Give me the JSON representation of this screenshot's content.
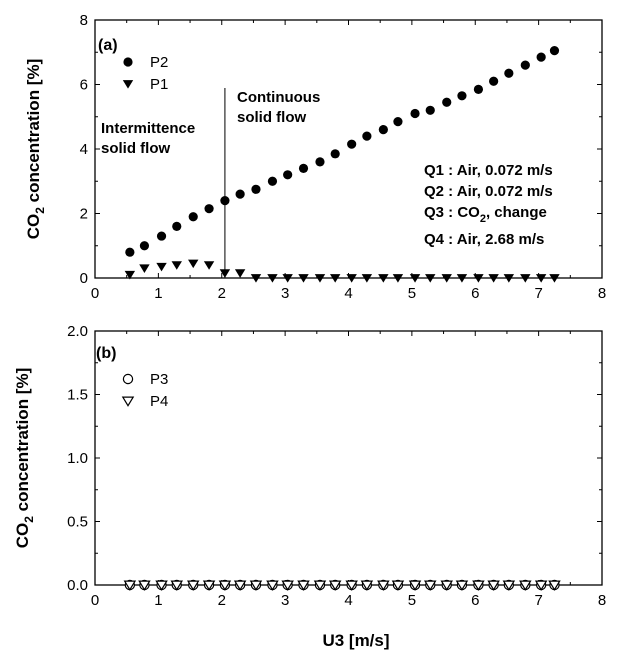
{
  "chart_data": [
    {
      "type": "scatter",
      "panel_label": "(a)",
      "ylabel_main": "CO",
      "ylabel_sub": "2",
      "ylabel_rest": " concentration [%]",
      "xlim": [
        0,
        8
      ],
      "ylim": [
        0,
        8
      ],
      "xticks": [
        "0",
        "1",
        "2",
        "3",
        "4",
        "5",
        "6",
        "7",
        "8"
      ],
      "yticks": [
        "0",
        "2",
        "4",
        "6",
        "8"
      ],
      "grid": false,
      "legend_position": "top-left",
      "series": [
        {
          "name": "P2",
          "marker": "filled-circle",
          "x": [
            0.55,
            0.78,
            1.05,
            1.29,
            1.55,
            1.8,
            2.05,
            2.29,
            2.54,
            2.8,
            3.04,
            3.29,
            3.55,
            3.79,
            4.05,
            4.29,
            4.55,
            4.78,
            5.05,
            5.29,
            5.55,
            5.79,
            6.05,
            6.29,
            6.53,
            6.79,
            7.04,
            7.25
          ],
          "y": [
            0.8,
            1.0,
            1.3,
            1.6,
            1.9,
            2.15,
            2.4,
            2.6,
            2.75,
            3.0,
            3.2,
            3.4,
            3.6,
            3.85,
            4.15,
            4.4,
            4.6,
            4.85,
            5.1,
            5.2,
            5.45,
            5.65,
            5.85,
            6.1,
            6.35,
            6.6,
            6.85,
            7.05
          ]
        },
        {
          "name": "P1",
          "marker": "filled-down-triangle",
          "x": [
            0.55,
            0.78,
            1.05,
            1.29,
            1.55,
            1.8,
            2.05,
            2.29,
            2.54,
            2.8,
            3.04,
            3.29,
            3.55,
            3.79,
            4.05,
            4.29,
            4.55,
            4.78,
            5.05,
            5.29,
            5.55,
            5.79,
            6.05,
            6.29,
            6.53,
            6.79,
            7.04,
            7.25
          ],
          "y": [
            0.1,
            0.3,
            0.35,
            0.4,
            0.45,
            0.4,
            0.15,
            0.15,
            0.0,
            0.0,
            0.0,
            0.0,
            0.0,
            0.0,
            0.0,
            0.0,
            0.0,
            0.0,
            0.0,
            0.0,
            0.0,
            0.0,
            0.0,
            0.0,
            0.0,
            0.0,
            0.0,
            0.0
          ]
        }
      ],
      "annotations": {
        "left_region": [
          "Intermittence",
          "solid flow"
        ],
        "right_region": [
          "Continuous",
          "solid flow"
        ],
        "divider_x": 2.05,
        "conditions": [
          {
            "main": "Q1 : Air, 0.072 m/s"
          },
          {
            "main": "Q2 : Air, 0.072 m/s"
          },
          {
            "main": "Q3 : CO",
            "sub": "2",
            "rest": ", change"
          },
          {
            "main": "Q4 : Air, 2.68 m/s"
          }
        ]
      }
    },
    {
      "type": "scatter",
      "panel_label": "(b)",
      "ylabel_main": "CO",
      "ylabel_sub": "2",
      "ylabel_rest": " concentration [%]",
      "xlabel": "U3 [m/s]",
      "xlim": [
        0,
        8
      ],
      "ylim": [
        0,
        2
      ],
      "xticks": [
        "0",
        "1",
        "2",
        "3",
        "4",
        "5",
        "6",
        "7",
        "8"
      ],
      "yticks": [
        "0.0",
        "0.5",
        "1.0",
        "1.5",
        "2.0"
      ],
      "grid": false,
      "legend_position": "top-left",
      "series": [
        {
          "name": "P3",
          "marker": "open-circle",
          "x": [
            0.55,
            0.78,
            1.05,
            1.29,
            1.55,
            1.8,
            2.05,
            2.29,
            2.54,
            2.8,
            3.04,
            3.29,
            3.55,
            3.79,
            4.05,
            4.29,
            4.55,
            4.78,
            5.05,
            5.29,
            5.55,
            5.79,
            6.05,
            6.29,
            6.53,
            6.79,
            7.04,
            7.25
          ],
          "y": [
            0,
            0,
            0,
            0,
            0,
            0,
            0,
            0,
            0,
            0,
            0,
            0,
            0,
            0,
            0,
            0,
            0,
            0,
            0,
            0,
            0,
            0,
            0,
            0,
            0,
            0,
            0,
            0
          ]
        },
        {
          "name": "P4",
          "marker": "open-down-triangle",
          "x": [
            0.55,
            0.78,
            1.05,
            1.29,
            1.55,
            1.8,
            2.05,
            2.29,
            2.54,
            2.8,
            3.04,
            3.29,
            3.55,
            3.79,
            4.05,
            4.29,
            4.55,
            4.78,
            5.05,
            5.29,
            5.55,
            5.79,
            6.05,
            6.29,
            6.53,
            6.79,
            7.04,
            7.25
          ],
          "y": [
            0,
            0,
            0,
            0,
            0,
            0,
            0,
            0,
            0,
            0,
            0,
            0,
            0,
            0,
            0,
            0,
            0,
            0,
            0,
            0,
            0,
            0,
            0,
            0,
            0,
            0,
            0,
            0
          ]
        }
      ]
    }
  ]
}
